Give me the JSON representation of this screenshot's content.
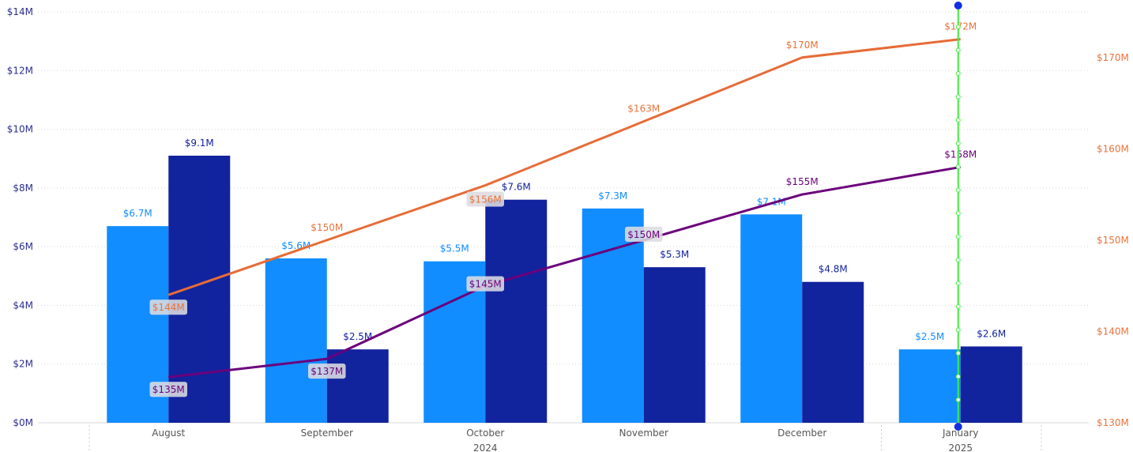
{
  "chart_data": {
    "type": "bar",
    "categories": [
      "August",
      "September",
      "October",
      "November",
      "December",
      "January"
    ],
    "x_group_labels": [
      "2024",
      "2025"
    ],
    "series": [
      {
        "kind": "bar",
        "axis": "left",
        "values": [
          6.7,
          5.6,
          5.5,
          7.3,
          7.1,
          2.5
        ],
        "labels": [
          "$6.7M",
          "$5.6M",
          "$5.5M",
          "$7.3M",
          "$7.1M",
          "$2.5M"
        ],
        "color": "#118dff"
      },
      {
        "kind": "bar",
        "axis": "left",
        "values": [
          9.1,
          2.5,
          7.6,
          5.3,
          4.8,
          2.6
        ],
        "labels": [
          "$9.1M",
          "$2.5M",
          "$7.6M",
          "$5.3M",
          "$4.8M",
          "$2.6M"
        ],
        "color": "#12239e"
      },
      {
        "kind": "line",
        "axis": "right",
        "values": [
          144,
          150,
          156,
          163,
          170,
          172
        ],
        "labels": [
          "$144M",
          "$150M",
          "$156M",
          "$163M",
          "$170M",
          "$172M"
        ],
        "color": "#e66c37"
      },
      {
        "kind": "line",
        "axis": "right",
        "values": [
          135,
          137,
          145,
          150,
          155,
          158
        ],
        "labels": [
          "$135M",
          "$137M",
          "$145M",
          "$150M",
          "$155M",
          "$158M"
        ],
        "color": "#6b007b"
      }
    ],
    "y_left": {
      "min": 0,
      "max": 14,
      "ticks": [
        "$0M",
        "$2M",
        "$4M",
        "$6M",
        "$8M",
        "$10M",
        "$12M",
        "$14M"
      ],
      "color": "#2b2f8f"
    },
    "y_right": {
      "min": 130,
      "max": 175,
      "ticks": [
        "$130M",
        "$140M",
        "$150M",
        "$160M",
        "$170M"
      ],
      "color": "#e8743b"
    },
    "grid": true,
    "cursor_line_color": "#3cef3c",
    "cursor_category": "January"
  }
}
